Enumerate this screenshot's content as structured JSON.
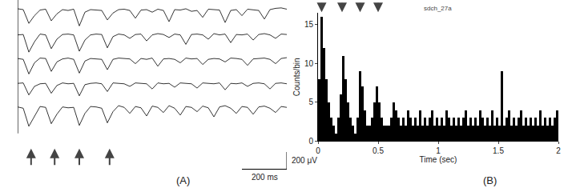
{
  "chart_data": [
    {
      "type": "line",
      "panel": "(A)",
      "tick_labels": false,
      "xlim": [
        0,
        1200
      ],
      "ylim": [
        -250,
        100
      ],
      "x": [
        0,
        25,
        50,
        75,
        100,
        125,
        150,
        175,
        200,
        225,
        250,
        275,
        300,
        325,
        350,
        375,
        400,
        425,
        450,
        475,
        500,
        525,
        550,
        575,
        600,
        625,
        650,
        675,
        700,
        725,
        750,
        775,
        800,
        825,
        850,
        875,
        900,
        925,
        950,
        975,
        1000,
        1025,
        1050,
        1075,
        1100,
        1125,
        1150,
        1175,
        1200
      ],
      "series": [
        {
          "color": "#000000",
          "values": [
            20,
            10,
            -150,
            -60,
            5,
            15,
            -120,
            -40,
            10,
            0,
            15,
            -180,
            -20,
            10,
            5,
            0,
            -110,
            -30,
            10,
            15,
            0,
            -90,
            5,
            10,
            -20,
            15,
            0,
            -130,
            10,
            5,
            20,
            -10,
            0,
            -80,
            15,
            10,
            5,
            -140,
            0,
            10,
            -60,
            15,
            5,
            0,
            -100,
            10,
            25,
            30,
            15
          ]
        },
        {
          "color": "#000000",
          "values": [
            0,
            5,
            -200,
            -80,
            10,
            0,
            -160,
            -50,
            5,
            10,
            0,
            -190,
            -60,
            0,
            10,
            5,
            -150,
            -20,
            10,
            0,
            -40,
            5,
            10,
            -70,
            0,
            15,
            5,
            -30,
            10,
            0,
            -110,
            5,
            10,
            0,
            -50,
            15,
            0,
            10,
            -90,
            5,
            0,
            10,
            -60,
            5,
            15,
            0,
            -40,
            10,
            5
          ]
        },
        {
          "color": "#000000",
          "values": [
            10,
            0,
            -170,
            -40,
            15,
            10,
            -140,
            -30,
            5,
            15,
            0,
            -160,
            -20,
            10,
            5,
            0,
            -120,
            0,
            15,
            10,
            5,
            -50,
            10,
            0,
            15,
            -80,
            5,
            10,
            0,
            -40,
            15,
            5,
            10,
            -60,
            0,
            10,
            5,
            -30,
            15,
            10,
            0,
            -70,
            5,
            10,
            15,
            0,
            -50,
            10,
            20
          ]
        },
        {
          "color": "#000000",
          "values": [
            5,
            10,
            -130,
            -30,
            0,
            5,
            -110,
            -20,
            10,
            0,
            5,
            -140,
            -10,
            5,
            10,
            0,
            -90,
            10,
            5,
            0,
            -30,
            10,
            5,
            0,
            -60,
            10,
            0,
            5,
            -40,
            10,
            5,
            0,
            -50,
            10,
            5,
            0,
            10,
            -70,
            5,
            0,
            10,
            -30,
            5,
            10,
            0,
            -60,
            5,
            10,
            0
          ]
        },
        {
          "color": "#000000",
          "values": [
            15,
            0,
            -210,
            -90,
            20,
            10,
            -180,
            -70,
            15,
            5,
            10,
            -200,
            -60,
            20,
            15,
            0,
            -170,
            -40,
            30,
            10,
            -60,
            20,
            5,
            -90,
            25,
            10,
            -50,
            30,
            0,
            -80,
            20,
            10,
            -40,
            25,
            5,
            -100,
            15,
            30,
            0,
            -60,
            20,
            10,
            -70,
            15,
            25,
            0,
            -50,
            20,
            10
          ]
        }
      ],
      "arrows": [
        60,
        165,
        275,
        410
      ],
      "scale_bars": {
        "x": {
          "value": 200,
          "label": "200 ms"
        },
        "y": {
          "value": 200,
          "label": "200 μV"
        }
      }
    },
    {
      "type": "histogram",
      "panel": "(B)",
      "title": "sdch_27a",
      "x_label": "Time (sec)",
      "y_label": "Counts/bin",
      "color": "#000000",
      "bins": [
        0,
        0.02,
        0.04,
        0.06,
        0.08,
        0.1,
        0.12,
        0.14,
        0.16,
        0.18,
        0.2,
        0.22,
        0.24,
        0.26,
        0.28,
        0.3,
        0.32,
        0.34,
        0.36,
        0.38,
        0.4,
        0.42,
        0.44,
        0.46,
        0.48,
        0.5,
        0.52,
        0.54,
        0.56,
        0.58,
        0.6,
        0.62,
        0.64,
        0.66,
        0.68,
        0.7,
        0.72,
        0.74,
        0.76,
        0.78,
        0.8,
        0.82,
        0.84,
        0.86,
        0.88,
        0.9,
        0.92,
        0.94,
        0.96,
        0.98,
        1,
        1.02,
        1.04,
        1.06,
        1.08,
        1.1,
        1.12,
        1.14,
        1.16,
        1.18,
        1.2,
        1.22,
        1.24,
        1.26,
        1.28,
        1.3,
        1.32,
        1.34,
        1.36,
        1.38,
        1.4,
        1.42,
        1.44,
        1.46,
        1.48,
        1.5,
        1.52,
        1.54,
        1.56,
        1.58,
        1.6,
        1.62,
        1.64,
        1.66,
        1.68,
        1.7,
        1.72,
        1.74,
        1.76,
        1.78,
        1.8,
        1.82,
        1.84,
        1.86,
        1.88,
        1.9,
        1.92,
        1.94,
        1.96,
        1.98,
        2
      ],
      "counts": [
        8,
        16,
        12,
        8,
        5,
        3,
        2,
        1,
        3,
        6,
        11,
        8,
        5,
        3,
        2,
        1,
        3,
        9,
        7,
        4,
        2,
        2,
        3,
        5,
        7,
        5,
        3,
        2,
        2,
        2,
        3,
        5,
        4,
        3,
        2,
        3,
        2,
        4,
        3,
        2,
        3,
        2,
        4,
        2,
        3,
        2,
        3,
        4,
        2,
        3,
        2,
        3,
        2,
        4,
        3,
        2,
        3,
        2,
        3,
        2,
        3,
        4,
        2,
        3,
        2,
        3,
        2,
        4,
        3,
        2,
        3,
        2,
        4,
        2,
        3,
        2,
        9,
        2,
        3,
        4,
        2,
        3,
        2,
        3,
        4,
        2,
        3,
        2,
        3,
        2,
        3,
        2,
        4,
        2,
        3,
        2,
        3,
        2,
        3,
        4
      ],
      "xlim": [
        0,
        2
      ],
      "ylim": [
        0,
        16.5
      ],
      "xticks": [
        0,
        0.5,
        1,
        1.5,
        2
      ],
      "yticks": [
        0,
        5,
        10,
        15
      ],
      "arrows": [
        0.03,
        0.2,
        0.35,
        0.5
      ]
    }
  ]
}
